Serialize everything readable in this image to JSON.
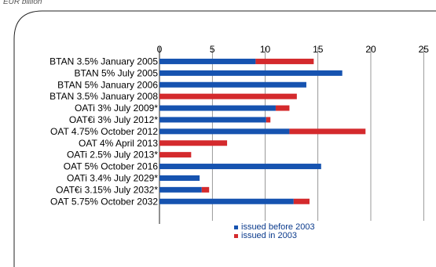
{
  "unit_label": "EUR billion",
  "colors": {
    "before": "#1653b0",
    "in": "#d42a2d",
    "text": "#000000",
    "axis": "#222222",
    "frame": "#222222"
  },
  "chart_data": {
    "type": "bar",
    "orientation": "horizontal",
    "stacked": true,
    "title": "",
    "xlabel": "",
    "ylabel": "",
    "xlim": [
      0,
      25
    ],
    "xticks": [
      0,
      5,
      10,
      15,
      20,
      25
    ],
    "grid": true,
    "legend_position": "bottom",
    "categories": [
      "BTAN 3.5% January 2005",
      "BTAN 5% July 2005",
      "BTAN 5% January 2006",
      "BTAN 3.5% January 2008",
      "OATi 3% July 2009*",
      "OAT€i 3% July 2012*",
      "OAT 4.75% October 2012",
      "OAT 4% April 2013",
      "OATi 2.5% July 2013*",
      "OAT 5% October 2016",
      "OATi 3.4% July 2029*",
      "OAT€i 3.15% July 2032*",
      "OAT 5.75% October 2032"
    ],
    "series": [
      {
        "name": "issued before 2003",
        "color": "#1653b0",
        "values": [
          9.1,
          17.3,
          13.9,
          0,
          11.0,
          10.1,
          12.3,
          0,
          0,
          15.3,
          3.8,
          4.0,
          12.7
        ]
      },
      {
        "name": "issued in 2003",
        "color": "#d42a2d",
        "values": [
          5.5,
          0,
          0,
          13.0,
          1.3,
          0.4,
          7.2,
          6.4,
          3.0,
          0,
          0,
          0.7,
          1.5
        ]
      }
    ]
  }
}
